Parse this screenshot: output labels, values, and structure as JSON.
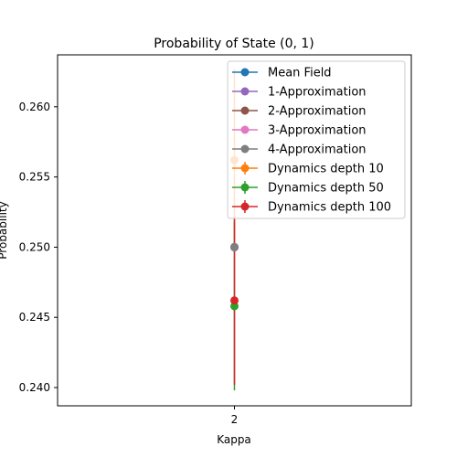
{
  "chart_data": {
    "type": "scatter",
    "title": "Probability of State (0, 1)",
    "xlabel": "Kappa",
    "ylabel": "Probability",
    "x_ticks": [
      "2"
    ],
    "y_ticks": [
      "0.240",
      "0.245",
      "0.250",
      "0.255",
      "0.260"
    ],
    "ylim": [
      0.2387,
      0.2637
    ],
    "xlim": [
      1.5,
      2.5
    ],
    "legend_position": "top-right",
    "series": [
      {
        "name": "Mean Field",
        "color": "#1f77b4",
        "x": [
          2
        ],
        "y": [
          0.25
        ],
        "error": null
      },
      {
        "name": "1-Approximation",
        "color": "#9467bd",
        "x": [
          2
        ],
        "y": [
          0.25
        ],
        "error": null
      },
      {
        "name": "2-Approximation",
        "color": "#8c564b",
        "x": [
          2
        ],
        "y": [
          0.25
        ],
        "error": null
      },
      {
        "name": "3-Approximation",
        "color": "#e377c2",
        "x": [
          2
        ],
        "y": [
          0.25
        ],
        "error": null
      },
      {
        "name": "4-Approximation",
        "color": "#7f7f7f",
        "x": [
          2
        ],
        "y": [
          0.25
        ],
        "error": null
      },
      {
        "name": "Dynamics depth 10",
        "color": "#ff7f0e",
        "x": [
          2
        ],
        "y": [
          0.2562
        ],
        "error": [
          0.0065
        ]
      },
      {
        "name": "Dynamics depth 50",
        "color": "#2ca02c",
        "x": [
          2
        ],
        "y": [
          0.2458
        ],
        "error": [
          0.006
        ]
      },
      {
        "name": "Dynamics depth 100",
        "color": "#d62728",
        "x": [
          2
        ],
        "y": [
          0.2462
        ],
        "error": [
          0.006
        ]
      }
    ]
  }
}
